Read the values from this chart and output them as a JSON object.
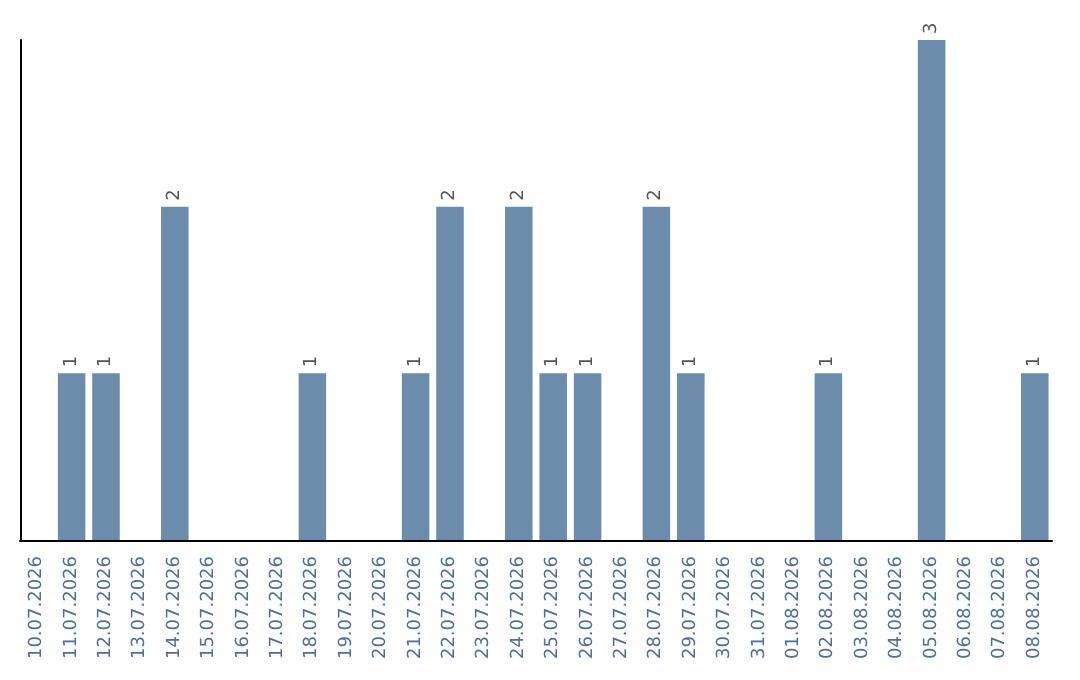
{
  "chart_data": {
    "type": "bar",
    "categories": [
      "10.07.2026",
      "11.07.2026",
      "12.07.2026",
      "13.07.2026",
      "14.07.2026",
      "15.07.2026",
      "16.07.2026",
      "17.07.2026",
      "18.07.2026",
      "19.07.2026",
      "20.07.2026",
      "21.07.2026",
      "22.07.2026",
      "23.07.2026",
      "24.07.2026",
      "25.07.2026",
      "26.07.2026",
      "27.07.2026",
      "28.07.2026",
      "29.07.2026",
      "30.07.2026",
      "31.07.2026",
      "01.08.2026",
      "02.08.2026",
      "03.08.2026",
      "04.08.2026",
      "05.08.2026",
      "06.08.2026",
      "07.08.2026",
      "08.08.2026"
    ],
    "values": [
      0,
      1,
      1,
      0,
      2,
      0,
      0,
      0,
      1,
      0,
      0,
      1,
      2,
      0,
      2,
      1,
      1,
      0,
      2,
      1,
      0,
      0,
      0,
      1,
      0,
      0,
      3,
      0,
      0,
      1
    ],
    "value_labels": [
      null,
      "1",
      "1",
      null,
      "2",
      null,
      null,
      null,
      "1",
      null,
      null,
      "1",
      "2",
      null,
      "2",
      "1",
      "1",
      null,
      "2",
      "1",
      null,
      null,
      null,
      "1",
      null,
      null,
      "3",
      null,
      null,
      "1"
    ],
    "color": "#6b8cab",
    "grid": false,
    "tick_labels": "x"
  }
}
